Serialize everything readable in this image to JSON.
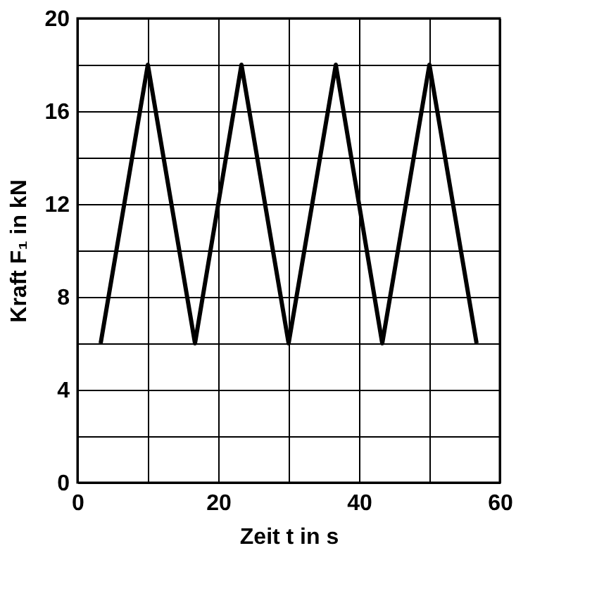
{
  "chart_data": {
    "type": "line",
    "xlabel": "Zeit t in s",
    "ylabel": "Kraft F₁ in kN",
    "x": [
      3.3,
      10,
      16.7,
      23.3,
      30,
      36.7,
      43.3,
      50,
      56.7
    ],
    "series": [
      {
        "color": "#000000",
        "values": [
          6,
          18,
          6,
          18,
          6,
          18,
          6,
          18,
          6
        ]
      }
    ],
    "xlim": [
      0,
      60
    ],
    "ylim": [
      0,
      20
    ],
    "xticks": [
      0,
      {
        "value": 10,
        "label": null
      },
      20,
      {
        "value": 30,
        "label": null
      },
      40,
      {
        "value": 50,
        "label": null
      },
      60
    ],
    "yticks": [
      0,
      {
        "value": 2,
        "label": null
      },
      4,
      {
        "value": 6,
        "label": null
      },
      8,
      {
        "value": 10,
        "label": null
      },
      12,
      {
        "value": 14,
        "label": null
      },
      16,
      {
        "value": 18,
        "label": null
      },
      20
    ],
    "grid": true,
    "marker": "none",
    "line_style": "solid"
  }
}
